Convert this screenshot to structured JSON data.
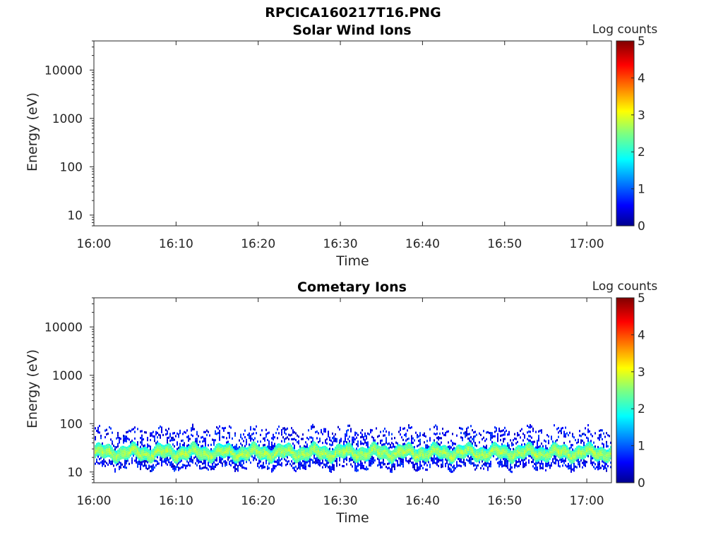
{
  "figure_title": "RPCICA160217T16.PNG",
  "chart_data": [
    {
      "type": "heatmap",
      "title": "Solar Wind Ions",
      "xlabel": "Time",
      "ylabel": "Energy (eV)",
      "x_ticks": [
        "16:00",
        "16:10",
        "16:20",
        "16:30",
        "16:40",
        "16:50",
        "17:00"
      ],
      "y_ticks": [
        "10",
        "100",
        "1000",
        "10000"
      ],
      "y_scale": "log",
      "ylim": [
        6,
        40000
      ],
      "xlim": [
        "16:00",
        "17:03"
      ],
      "colorbar": {
        "label": "Log counts",
        "ticks": [
          "0",
          "1",
          "2",
          "3",
          "4",
          "5"
        ],
        "range": [
          0,
          5
        ],
        "colormap": "jet"
      },
      "data_band": null
    },
    {
      "type": "heatmap",
      "title": "Cometary Ions",
      "xlabel": "Time",
      "ylabel": "Energy (eV)",
      "x_ticks": [
        "16:00",
        "16:10",
        "16:20",
        "16:30",
        "16:40",
        "16:50",
        "17:00"
      ],
      "y_ticks": [
        "10",
        "100",
        "1000",
        "10000"
      ],
      "y_scale": "log",
      "ylim": [
        6,
        40000
      ],
      "xlim": [
        "16:00",
        "17:03"
      ],
      "colorbar": {
        "label": "Log counts",
        "ticks": [
          "0",
          "1",
          "2",
          "3",
          "4",
          "5"
        ],
        "range": [
          0,
          5
        ],
        "colormap": "jet"
      },
      "data_band": {
        "core_energy_ev": [
          17,
          32
        ],
        "core_log_counts": [
          2.0,
          2.8
        ],
        "low_count_energy_ev": [
          12,
          80
        ],
        "low_count_log_counts": [
          0.3,
          1.0
        ]
      }
    }
  ]
}
